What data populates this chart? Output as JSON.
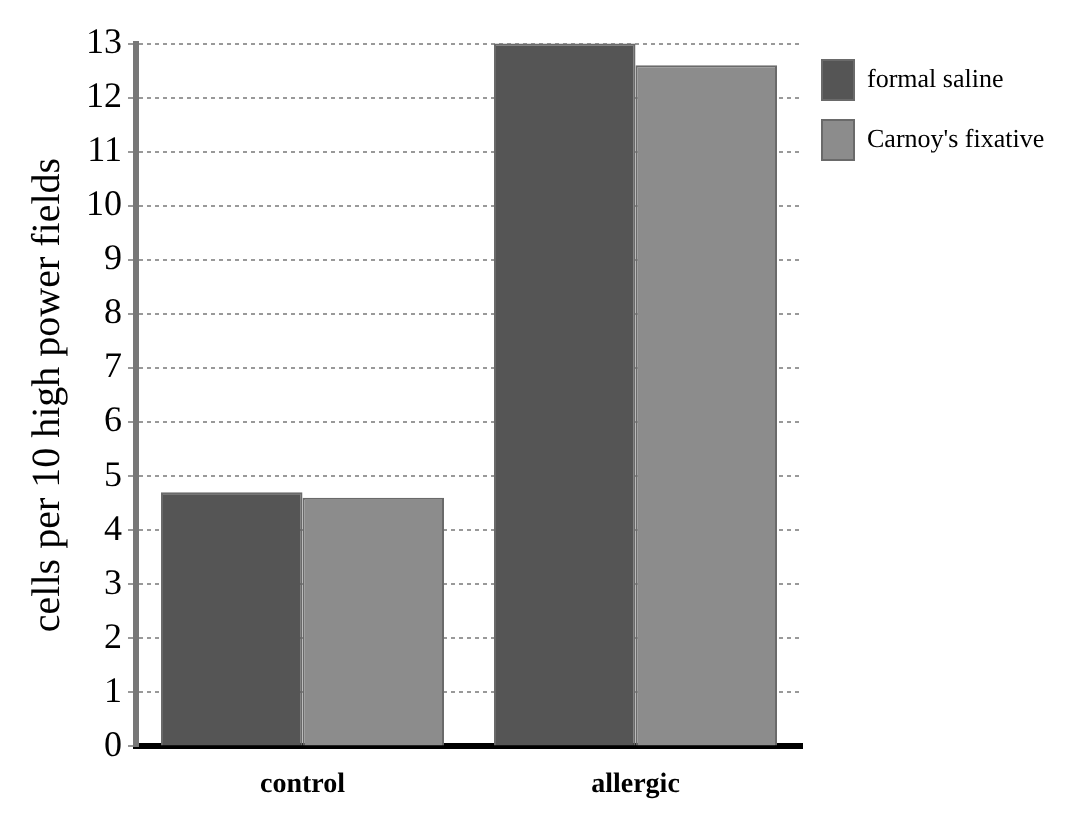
{
  "chart_data": {
    "type": "bar",
    "ylabel": "cells per 10 high power fields",
    "categories": [
      "control",
      "allergic"
    ],
    "series": [
      {
        "name": "formal saline",
        "color": "#555555",
        "values": [
          4.7,
          13
        ]
      },
      {
        "name": "Carnoy's fixative",
        "color": "#8c8c8c",
        "values": [
          4.6,
          12.6
        ]
      }
    ],
    "ylim": [
      0,
      13
    ],
    "yticks": [
      0,
      1,
      2,
      3,
      4,
      5,
      6,
      7,
      8,
      9,
      10,
      11,
      12,
      13
    ],
    "grid": "y",
    "legend": "top right"
  }
}
